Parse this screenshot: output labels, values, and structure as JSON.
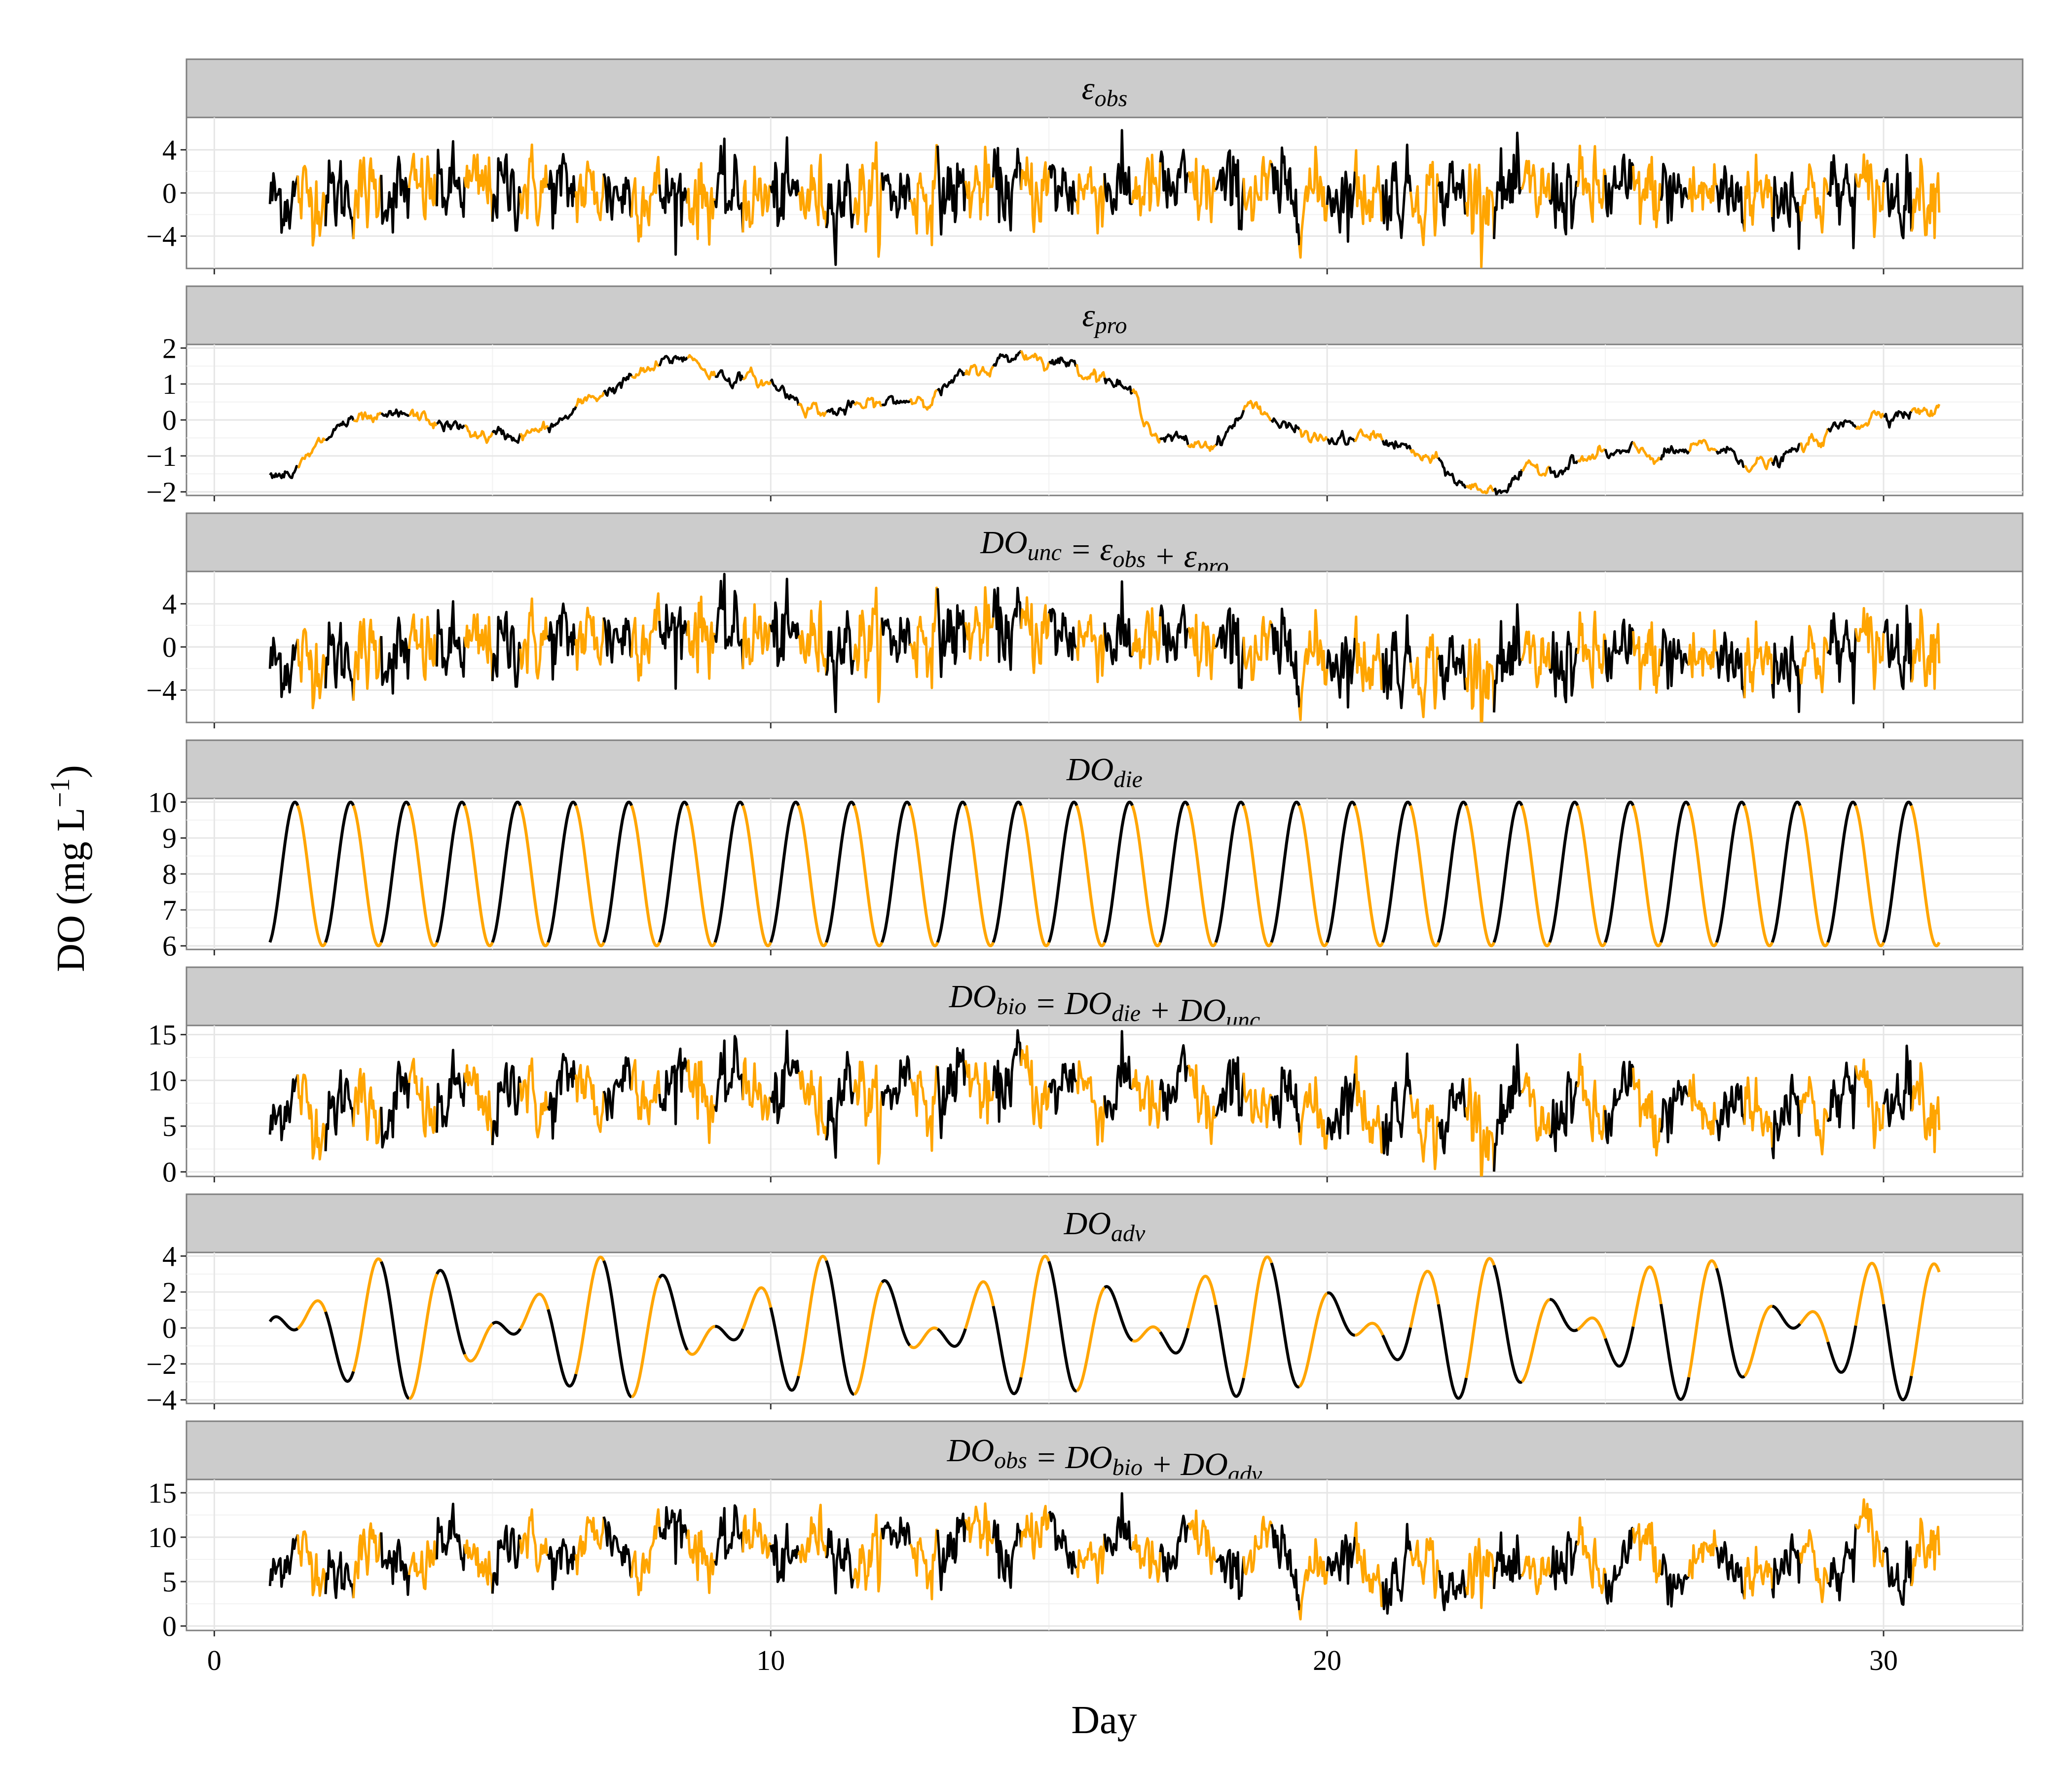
{
  "chart_data": {
    "type": "line",
    "xlabel": "Day",
    "ylabel": "DO (mg L^-1)",
    "ylabel_parts": {
      "main": "DO (mg L",
      "exp": "−1",
      "close": ")"
    },
    "xlim": [
      -0.5,
      32.5
    ],
    "xticks": [
      0,
      10,
      20,
      30
    ],
    "x_range": [
      1,
      31
    ],
    "colors": {
      "day": "#FFA500",
      "night": "#000000",
      "strip": "#cccccc",
      "border": "#7f7f7f",
      "grid": "#e6e6e6"
    },
    "panels": [
      {
        "label": "εobs",
        "label_parts": [
          [
            "ε",
            ""
          ],
          [
            "obs",
            "sub"
          ]
        ],
        "ylim": [
          -7,
          7
        ],
        "yticks": [
          -4,
          0,
          4
        ],
        "kind": "noise",
        "anchors": [
          [
            1,
            -0.5
          ],
          [
            5,
            0.5
          ],
          [
            10,
            -0.5
          ],
          [
            15,
            0.5
          ],
          [
            20,
            0
          ],
          [
            25,
            0
          ],
          [
            31,
            0
          ]
        ],
        "noise": 2.0
      },
      {
        "label": "εpro",
        "label_parts": [
          [
            "ε",
            ""
          ],
          [
            "pro",
            "sub"
          ]
        ],
        "ylim": [
          -2.1,
          2.1
        ],
        "yticks": [
          -2,
          -1,
          0,
          1,
          2
        ],
        "kind": "walk",
        "anchors": [
          [
            1,
            -1.4
          ],
          [
            1.5,
            -1.4
          ],
          [
            2.3,
            -0.1
          ],
          [
            3,
            -0.1
          ],
          [
            3.5,
            0.1
          ],
          [
            5,
            -0.5
          ],
          [
            6,
            -0.3
          ],
          [
            7,
            0.8
          ],
          [
            8.5,
            1.8
          ],
          [
            9,
            1.3
          ],
          [
            10,
            1.0
          ],
          [
            11,
            0.2
          ],
          [
            12,
            0.4
          ],
          [
            13,
            0.8
          ],
          [
            14.5,
            1.9
          ],
          [
            16,
            1.3
          ],
          [
            16.6,
            0.5
          ],
          [
            17,
            -0.5
          ],
          [
            17.5,
            -0.7
          ],
          [
            18,
            -0.6
          ],
          [
            18.7,
            0.5
          ],
          [
            19.3,
            -0.3
          ],
          [
            20,
            -0.6
          ],
          [
            21,
            -0.5
          ],
          [
            22,
            -1.3
          ],
          [
            22.5,
            -1.9
          ],
          [
            23,
            -1.9
          ],
          [
            24,
            -1.3
          ],
          [
            25,
            -1.0
          ],
          [
            26,
            -1.0
          ],
          [
            27,
            -0.8
          ],
          [
            28,
            -1.3
          ],
          [
            29,
            -0.4
          ],
          [
            30,
            0.3
          ],
          [
            31,
            0.2
          ]
        ],
        "noise": 0.07
      },
      {
        "label": "DOunc = εobs + εpro",
        "label_parts": [
          [
            "DO",
            ""
          ],
          [
            "unc",
            "sub"
          ],
          [
            " = ε",
            ""
          ],
          [
            "obs",
            "sub"
          ],
          [
            " + ε",
            ""
          ],
          [
            "pro",
            "sub"
          ]
        ],
        "ylim": [
          -7,
          7
        ],
        "yticks": [
          -4,
          0,
          4
        ],
        "kind": "noise",
        "anchors": [
          [
            1,
            -1.5
          ],
          [
            2,
            -1.0
          ],
          [
            5,
            0.0
          ],
          [
            8.5,
            1.8
          ],
          [
            11,
            0.3
          ],
          [
            14.5,
            1.8
          ],
          [
            16.5,
            0.5
          ],
          [
            19,
            -0.5
          ],
          [
            22.5,
            -2.0
          ],
          [
            25,
            -1.0
          ],
          [
            28,
            -1.2
          ],
          [
            30,
            0.3
          ],
          [
            31,
            0.3
          ]
        ],
        "noise": 2.0
      },
      {
        "label": "DOdie",
        "label_parts": [
          [
            "DO",
            ""
          ],
          [
            "die",
            "sub"
          ]
        ],
        "ylim": [
          5.9,
          10.1
        ],
        "yticks": [
          6,
          7,
          8,
          9,
          10
        ],
        "kind": "sine",
        "mean": 8,
        "amplitude": 2,
        "period_days": 1,
        "phase_days": 0.45
      },
      {
        "label": "DObio = DOdie + DOunc",
        "label_parts": [
          [
            "DO",
            ""
          ],
          [
            "bio",
            "sub"
          ],
          [
            " = DO",
            ""
          ],
          [
            "die",
            "sub"
          ],
          [
            " + DO",
            ""
          ],
          [
            "unc",
            "sub"
          ]
        ],
        "ylim": [
          -0.5,
          16
        ],
        "yticks": [
          0,
          5,
          10,
          15
        ],
        "kind": "sine_noise",
        "mean": 8,
        "amplitude": 2,
        "period_days": 1,
        "phase_days": 0.45,
        "anchors": [
          [
            1,
            -1.5
          ],
          [
            2,
            -1.0
          ],
          [
            5,
            0.0
          ],
          [
            8.5,
            1.8
          ],
          [
            11,
            0.3
          ],
          [
            14.5,
            1.8
          ],
          [
            16.5,
            0.5
          ],
          [
            19,
            -0.5
          ],
          [
            22.5,
            -2.0
          ],
          [
            25,
            -1.0
          ],
          [
            28,
            -1.2
          ],
          [
            30,
            0.3
          ],
          [
            31,
            0.3
          ]
        ],
        "noise": 2.0
      },
      {
        "label": "DOadv",
        "label_parts": [
          [
            "DO",
            ""
          ],
          [
            "adv",
            "sub"
          ]
        ],
        "ylim": [
          -4.2,
          4.2
        ],
        "yticks": [
          -4,
          -2,
          0,
          2,
          4
        ],
        "kind": "beat",
        "a1": 2.0,
        "p1_days": 0.995,
        "a2": 2.0,
        "p2_days": 1.34,
        "phase1": 0.25,
        "phase2": 0.1
      },
      {
        "label": "DOobs = DObio + DOadv",
        "label_parts": [
          [
            "DO",
            ""
          ],
          [
            "obs",
            "sub"
          ],
          [
            " = DO",
            ""
          ],
          [
            "bio",
            "sub"
          ],
          [
            " + DO",
            ""
          ],
          [
            "adv",
            "sub"
          ]
        ],
        "ylim": [
          -0.5,
          16.5
        ],
        "yticks": [
          0,
          5,
          10,
          15
        ],
        "kind": "sum",
        "mean": 8,
        "amplitude": 2,
        "period_days": 1,
        "phase_days": 0.45,
        "a1": 2.0,
        "p1_days": 0.995,
        "a2": 2.0,
        "p2_days": 1.34,
        "phase1": 0.25,
        "phase2": 0.1,
        "anchors": [
          [
            1,
            -1.5
          ],
          [
            2,
            -1.0
          ],
          [
            5,
            0.0
          ],
          [
            8.5,
            1.8
          ],
          [
            11,
            0.3
          ],
          [
            14.5,
            1.8
          ],
          [
            16.5,
            0.5
          ],
          [
            19,
            -0.5
          ],
          [
            22.5,
            -2.0
          ],
          [
            25,
            -1.0
          ],
          [
            28,
            -1.2
          ],
          [
            30,
            0.3
          ],
          [
            31,
            0.3
          ]
        ],
        "noise": 1.8
      }
    ]
  }
}
